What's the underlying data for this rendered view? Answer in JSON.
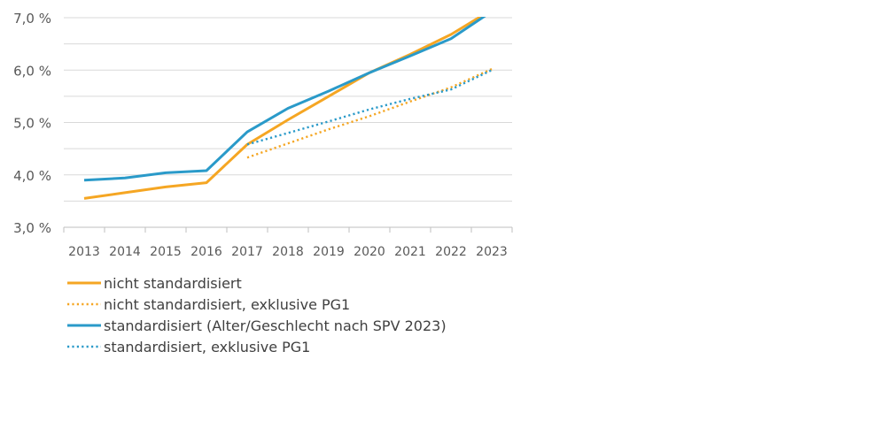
{
  "chart_data": {
    "type": "line",
    "x": [
      "2013",
      "2014",
      "2015",
      "2016",
      "2017",
      "2018",
      "2019",
      "2020",
      "2021",
      "2022",
      "2023"
    ],
    "ylim": [
      3.0,
      7.0
    ],
    "yticks": [
      3.0,
      4.0,
      5.0,
      6.0,
      7.0
    ],
    "ytick_labels": [
      "3,0 %",
      "4,0 %",
      "5,0 %",
      "6,0 %",
      "7,0 %"
    ],
    "grid": true,
    "legend_position": "bottom",
    "series": [
      {
        "name": "nicht standardisiert",
        "style": "solid",
        "color": "#F5A623",
        "values": [
          3.55,
          3.66,
          3.77,
          3.85,
          4.58,
          5.05,
          5.5,
          5.95,
          6.3,
          6.68,
          7.15
        ]
      },
      {
        "name": "nicht standardisiert, exklusive PG1",
        "style": "dotted",
        "color": "#F5A623",
        "values": [
          null,
          null,
          null,
          null,
          4.33,
          4.6,
          4.87,
          5.12,
          5.4,
          5.67,
          6.02
        ]
      },
      {
        "name": "standardisiert (Alter/Geschlecht nach SPV 2023)",
        "style": "solid",
        "color": "#2A9AC9",
        "values": [
          3.9,
          3.94,
          4.04,
          4.08,
          4.82,
          5.27,
          5.6,
          5.95,
          6.27,
          6.6,
          7.12
        ]
      },
      {
        "name": "standardisiert, exklusive PG1",
        "style": "dotted",
        "color": "#2A9AC9",
        "values": [
          null,
          null,
          null,
          null,
          4.58,
          4.8,
          5.02,
          5.25,
          5.45,
          5.63,
          6.0
        ]
      }
    ]
  }
}
